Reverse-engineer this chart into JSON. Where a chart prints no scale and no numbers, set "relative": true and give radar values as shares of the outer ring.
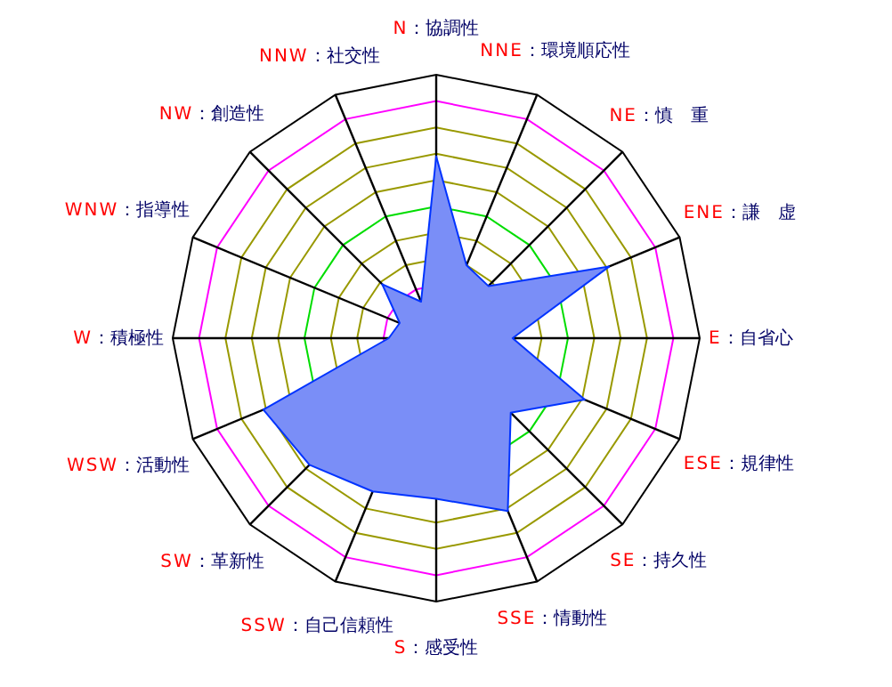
{
  "chart_data": {
    "type": "radar",
    "relative": true,
    "categories": [
      "N：協調性",
      "NNE：環境順応性",
      "NE：慎　重",
      "ENE：謙　虚",
      "E：自省心",
      "ESE：規律性",
      "SE：持久性",
      "SSE：情動性",
      "S：感受性",
      "SSW：自己信頼性",
      "SW：革新性",
      "WSW：活動性",
      "W：積極性",
      "WNW：指導性",
      "NW：創造性",
      "NNW：社交性"
    ],
    "series": [
      {
        "color": "#7a8ef7",
        "values": [
          0.69,
          0.3,
          0.28,
          0.71,
          0.29,
          0.61,
          0.4,
          0.71,
          0.61,
          0.63,
          0.68,
          0.71,
          0.18,
          0.15,
          0.29,
          0.15
        ]
      }
    ]
  }
}
